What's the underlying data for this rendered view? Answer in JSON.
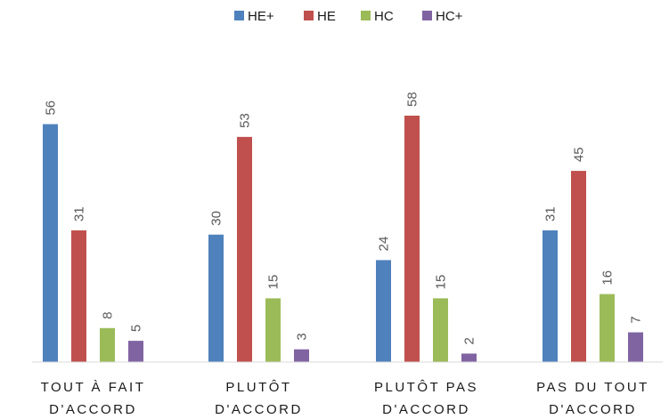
{
  "chart_data": {
    "type": "bar",
    "categories": [
      [
        "TOUT À FAIT",
        "D'ACCORD"
      ],
      [
        "PLUTÔT",
        "D'ACCORD"
      ],
      [
        "PLUTÔT PAS",
        "D'ACCORD"
      ],
      [
        "PAS DU TOUT",
        "D'ACCORD"
      ]
    ],
    "series": [
      {
        "name": "HE+",
        "color": "#4f81bd",
        "values": [
          56,
          30,
          24,
          31
        ]
      },
      {
        "name": "HE",
        "color": "#c0504d",
        "values": [
          31,
          53,
          58,
          45
        ]
      },
      {
        "name": "HC",
        "color": "#9bbb59",
        "values": [
          8,
          15,
          15,
          16
        ]
      },
      {
        "name": "HC+",
        "color": "#8064a2",
        "values": [
          5,
          3,
          2,
          7
        ]
      }
    ],
    "ylim": [
      0,
      58
    ],
    "legend_position": "top-center",
    "grid": false,
    "title": "",
    "xlabel": "",
    "ylabel": ""
  }
}
